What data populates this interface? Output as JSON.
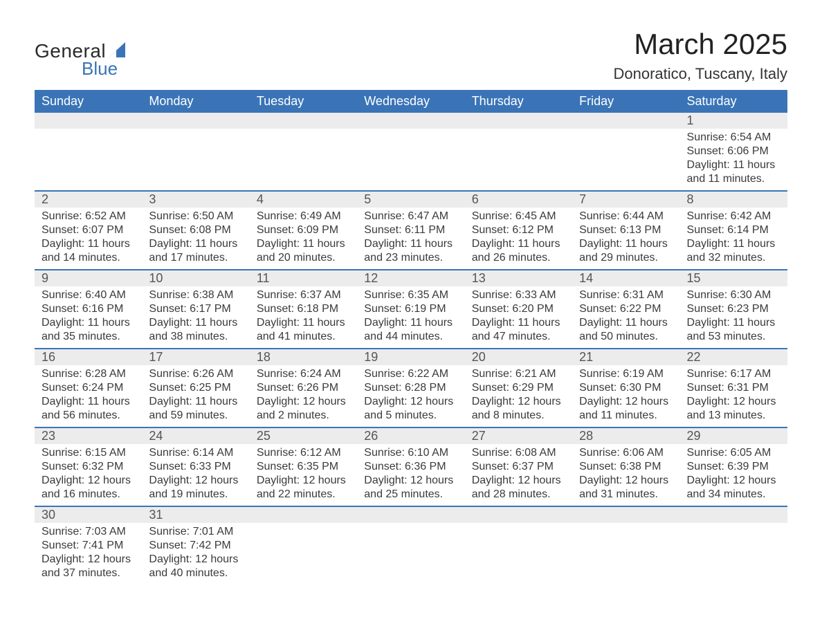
{
  "logo": {
    "text_general": "General",
    "text_blue": "Blue",
    "sail_color": "#3a74b7"
  },
  "header": {
    "month_title": "March 2025",
    "location": "Donoratico, Tuscany, Italy"
  },
  "colors": {
    "header_bg": "#3a74b7",
    "header_text": "#ffffff",
    "daynum_bg": "#ececec",
    "row_divider": "#3a74b7",
    "body_text": "#3a3a3a"
  },
  "typography": {
    "month_title_fontsize": 42,
    "location_fontsize": 22,
    "dayheader_fontsize": 18,
    "daynum_fontsize": 18,
    "detail_fontsize": 16
  },
  "day_headers": [
    "Sunday",
    "Monday",
    "Tuesday",
    "Wednesday",
    "Thursday",
    "Friday",
    "Saturday"
  ],
  "weeks": [
    [
      null,
      null,
      null,
      null,
      null,
      null,
      {
        "n": "1",
        "sunrise": "Sunrise: 6:54 AM",
        "sunset": "Sunset: 6:06 PM",
        "d1": "Daylight: 11 hours",
        "d2": "and 11 minutes."
      }
    ],
    [
      {
        "n": "2",
        "sunrise": "Sunrise: 6:52 AM",
        "sunset": "Sunset: 6:07 PM",
        "d1": "Daylight: 11 hours",
        "d2": "and 14 minutes."
      },
      {
        "n": "3",
        "sunrise": "Sunrise: 6:50 AM",
        "sunset": "Sunset: 6:08 PM",
        "d1": "Daylight: 11 hours",
        "d2": "and 17 minutes."
      },
      {
        "n": "4",
        "sunrise": "Sunrise: 6:49 AM",
        "sunset": "Sunset: 6:09 PM",
        "d1": "Daylight: 11 hours",
        "d2": "and 20 minutes."
      },
      {
        "n": "5",
        "sunrise": "Sunrise: 6:47 AM",
        "sunset": "Sunset: 6:11 PM",
        "d1": "Daylight: 11 hours",
        "d2": "and 23 minutes."
      },
      {
        "n": "6",
        "sunrise": "Sunrise: 6:45 AM",
        "sunset": "Sunset: 6:12 PM",
        "d1": "Daylight: 11 hours",
        "d2": "and 26 minutes."
      },
      {
        "n": "7",
        "sunrise": "Sunrise: 6:44 AM",
        "sunset": "Sunset: 6:13 PM",
        "d1": "Daylight: 11 hours",
        "d2": "and 29 minutes."
      },
      {
        "n": "8",
        "sunrise": "Sunrise: 6:42 AM",
        "sunset": "Sunset: 6:14 PM",
        "d1": "Daylight: 11 hours",
        "d2": "and 32 minutes."
      }
    ],
    [
      {
        "n": "9",
        "sunrise": "Sunrise: 6:40 AM",
        "sunset": "Sunset: 6:16 PM",
        "d1": "Daylight: 11 hours",
        "d2": "and 35 minutes."
      },
      {
        "n": "10",
        "sunrise": "Sunrise: 6:38 AM",
        "sunset": "Sunset: 6:17 PM",
        "d1": "Daylight: 11 hours",
        "d2": "and 38 minutes."
      },
      {
        "n": "11",
        "sunrise": "Sunrise: 6:37 AM",
        "sunset": "Sunset: 6:18 PM",
        "d1": "Daylight: 11 hours",
        "d2": "and 41 minutes."
      },
      {
        "n": "12",
        "sunrise": "Sunrise: 6:35 AM",
        "sunset": "Sunset: 6:19 PM",
        "d1": "Daylight: 11 hours",
        "d2": "and 44 minutes."
      },
      {
        "n": "13",
        "sunrise": "Sunrise: 6:33 AM",
        "sunset": "Sunset: 6:20 PM",
        "d1": "Daylight: 11 hours",
        "d2": "and 47 minutes."
      },
      {
        "n": "14",
        "sunrise": "Sunrise: 6:31 AM",
        "sunset": "Sunset: 6:22 PM",
        "d1": "Daylight: 11 hours",
        "d2": "and 50 minutes."
      },
      {
        "n": "15",
        "sunrise": "Sunrise: 6:30 AM",
        "sunset": "Sunset: 6:23 PM",
        "d1": "Daylight: 11 hours",
        "d2": "and 53 minutes."
      }
    ],
    [
      {
        "n": "16",
        "sunrise": "Sunrise: 6:28 AM",
        "sunset": "Sunset: 6:24 PM",
        "d1": "Daylight: 11 hours",
        "d2": "and 56 minutes."
      },
      {
        "n": "17",
        "sunrise": "Sunrise: 6:26 AM",
        "sunset": "Sunset: 6:25 PM",
        "d1": "Daylight: 11 hours",
        "d2": "and 59 minutes."
      },
      {
        "n": "18",
        "sunrise": "Sunrise: 6:24 AM",
        "sunset": "Sunset: 6:26 PM",
        "d1": "Daylight: 12 hours",
        "d2": "and 2 minutes."
      },
      {
        "n": "19",
        "sunrise": "Sunrise: 6:22 AM",
        "sunset": "Sunset: 6:28 PM",
        "d1": "Daylight: 12 hours",
        "d2": "and 5 minutes."
      },
      {
        "n": "20",
        "sunrise": "Sunrise: 6:21 AM",
        "sunset": "Sunset: 6:29 PM",
        "d1": "Daylight: 12 hours",
        "d2": "and 8 minutes."
      },
      {
        "n": "21",
        "sunrise": "Sunrise: 6:19 AM",
        "sunset": "Sunset: 6:30 PM",
        "d1": "Daylight: 12 hours",
        "d2": "and 11 minutes."
      },
      {
        "n": "22",
        "sunrise": "Sunrise: 6:17 AM",
        "sunset": "Sunset: 6:31 PM",
        "d1": "Daylight: 12 hours",
        "d2": "and 13 minutes."
      }
    ],
    [
      {
        "n": "23",
        "sunrise": "Sunrise: 6:15 AM",
        "sunset": "Sunset: 6:32 PM",
        "d1": "Daylight: 12 hours",
        "d2": "and 16 minutes."
      },
      {
        "n": "24",
        "sunrise": "Sunrise: 6:14 AM",
        "sunset": "Sunset: 6:33 PM",
        "d1": "Daylight: 12 hours",
        "d2": "and 19 minutes."
      },
      {
        "n": "25",
        "sunrise": "Sunrise: 6:12 AM",
        "sunset": "Sunset: 6:35 PM",
        "d1": "Daylight: 12 hours",
        "d2": "and 22 minutes."
      },
      {
        "n": "26",
        "sunrise": "Sunrise: 6:10 AM",
        "sunset": "Sunset: 6:36 PM",
        "d1": "Daylight: 12 hours",
        "d2": "and 25 minutes."
      },
      {
        "n": "27",
        "sunrise": "Sunrise: 6:08 AM",
        "sunset": "Sunset: 6:37 PM",
        "d1": "Daylight: 12 hours",
        "d2": "and 28 minutes."
      },
      {
        "n": "28",
        "sunrise": "Sunrise: 6:06 AM",
        "sunset": "Sunset: 6:38 PM",
        "d1": "Daylight: 12 hours",
        "d2": "and 31 minutes."
      },
      {
        "n": "29",
        "sunrise": "Sunrise: 6:05 AM",
        "sunset": "Sunset: 6:39 PM",
        "d1": "Daylight: 12 hours",
        "d2": "and 34 minutes."
      }
    ],
    [
      {
        "n": "30",
        "sunrise": "Sunrise: 7:03 AM",
        "sunset": "Sunset: 7:41 PM",
        "d1": "Daylight: 12 hours",
        "d2": "and 37 minutes."
      },
      {
        "n": "31",
        "sunrise": "Sunrise: 7:01 AM",
        "sunset": "Sunset: 7:42 PM",
        "d1": "Daylight: 12 hours",
        "d2": "and 40 minutes."
      },
      null,
      null,
      null,
      null,
      null
    ]
  ]
}
